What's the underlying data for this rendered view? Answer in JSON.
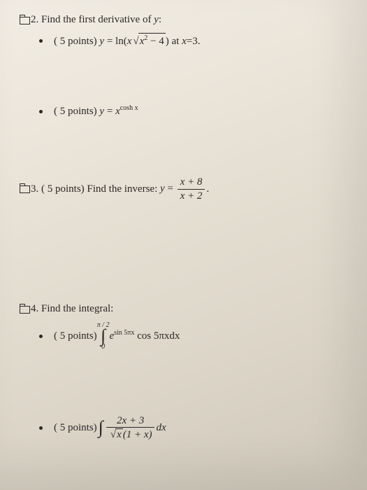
{
  "q2": {
    "header": "2. Find the first derivative of ",
    "header_var": "y",
    "header_colon": ":",
    "a": {
      "points": "( 5 points) ",
      "eq_lhs": "y",
      "eq_eq": " = ln(",
      "eq_rhs_x": "x",
      "eq_rad": "x",
      "eq_rad_sup": "2",
      "eq_rad_tail": " − 4",
      "eq_close": ") at ",
      "eq_at": "x",
      "eq_val": "=3."
    },
    "b": {
      "points": "( 5 points) ",
      "eq_lhs": "y",
      "eq_eq": " = ",
      "eq_base": "x",
      "eq_exp": "cosh x"
    }
  },
  "q3": {
    "header": "3. ( 5 points) Find the inverse: ",
    "eq_lhs": "y",
    "eq_eq": " = ",
    "num": "x + 8",
    "den": "x + 2",
    "period": "."
  },
  "q4": {
    "header": "4. Find the integral:",
    "a": {
      "points": "( 5 points) ",
      "upper": "π / 2",
      "lower": "0",
      "e_base": "e",
      "e_exp": "sin 5πx",
      "rest": " cos 5πxdx"
    },
    "b": {
      "points": "( 5 points) ",
      "num": "2x + 3",
      "rad": "x",
      "den_tail": "(1 + x)",
      "dx": "dx"
    }
  }
}
